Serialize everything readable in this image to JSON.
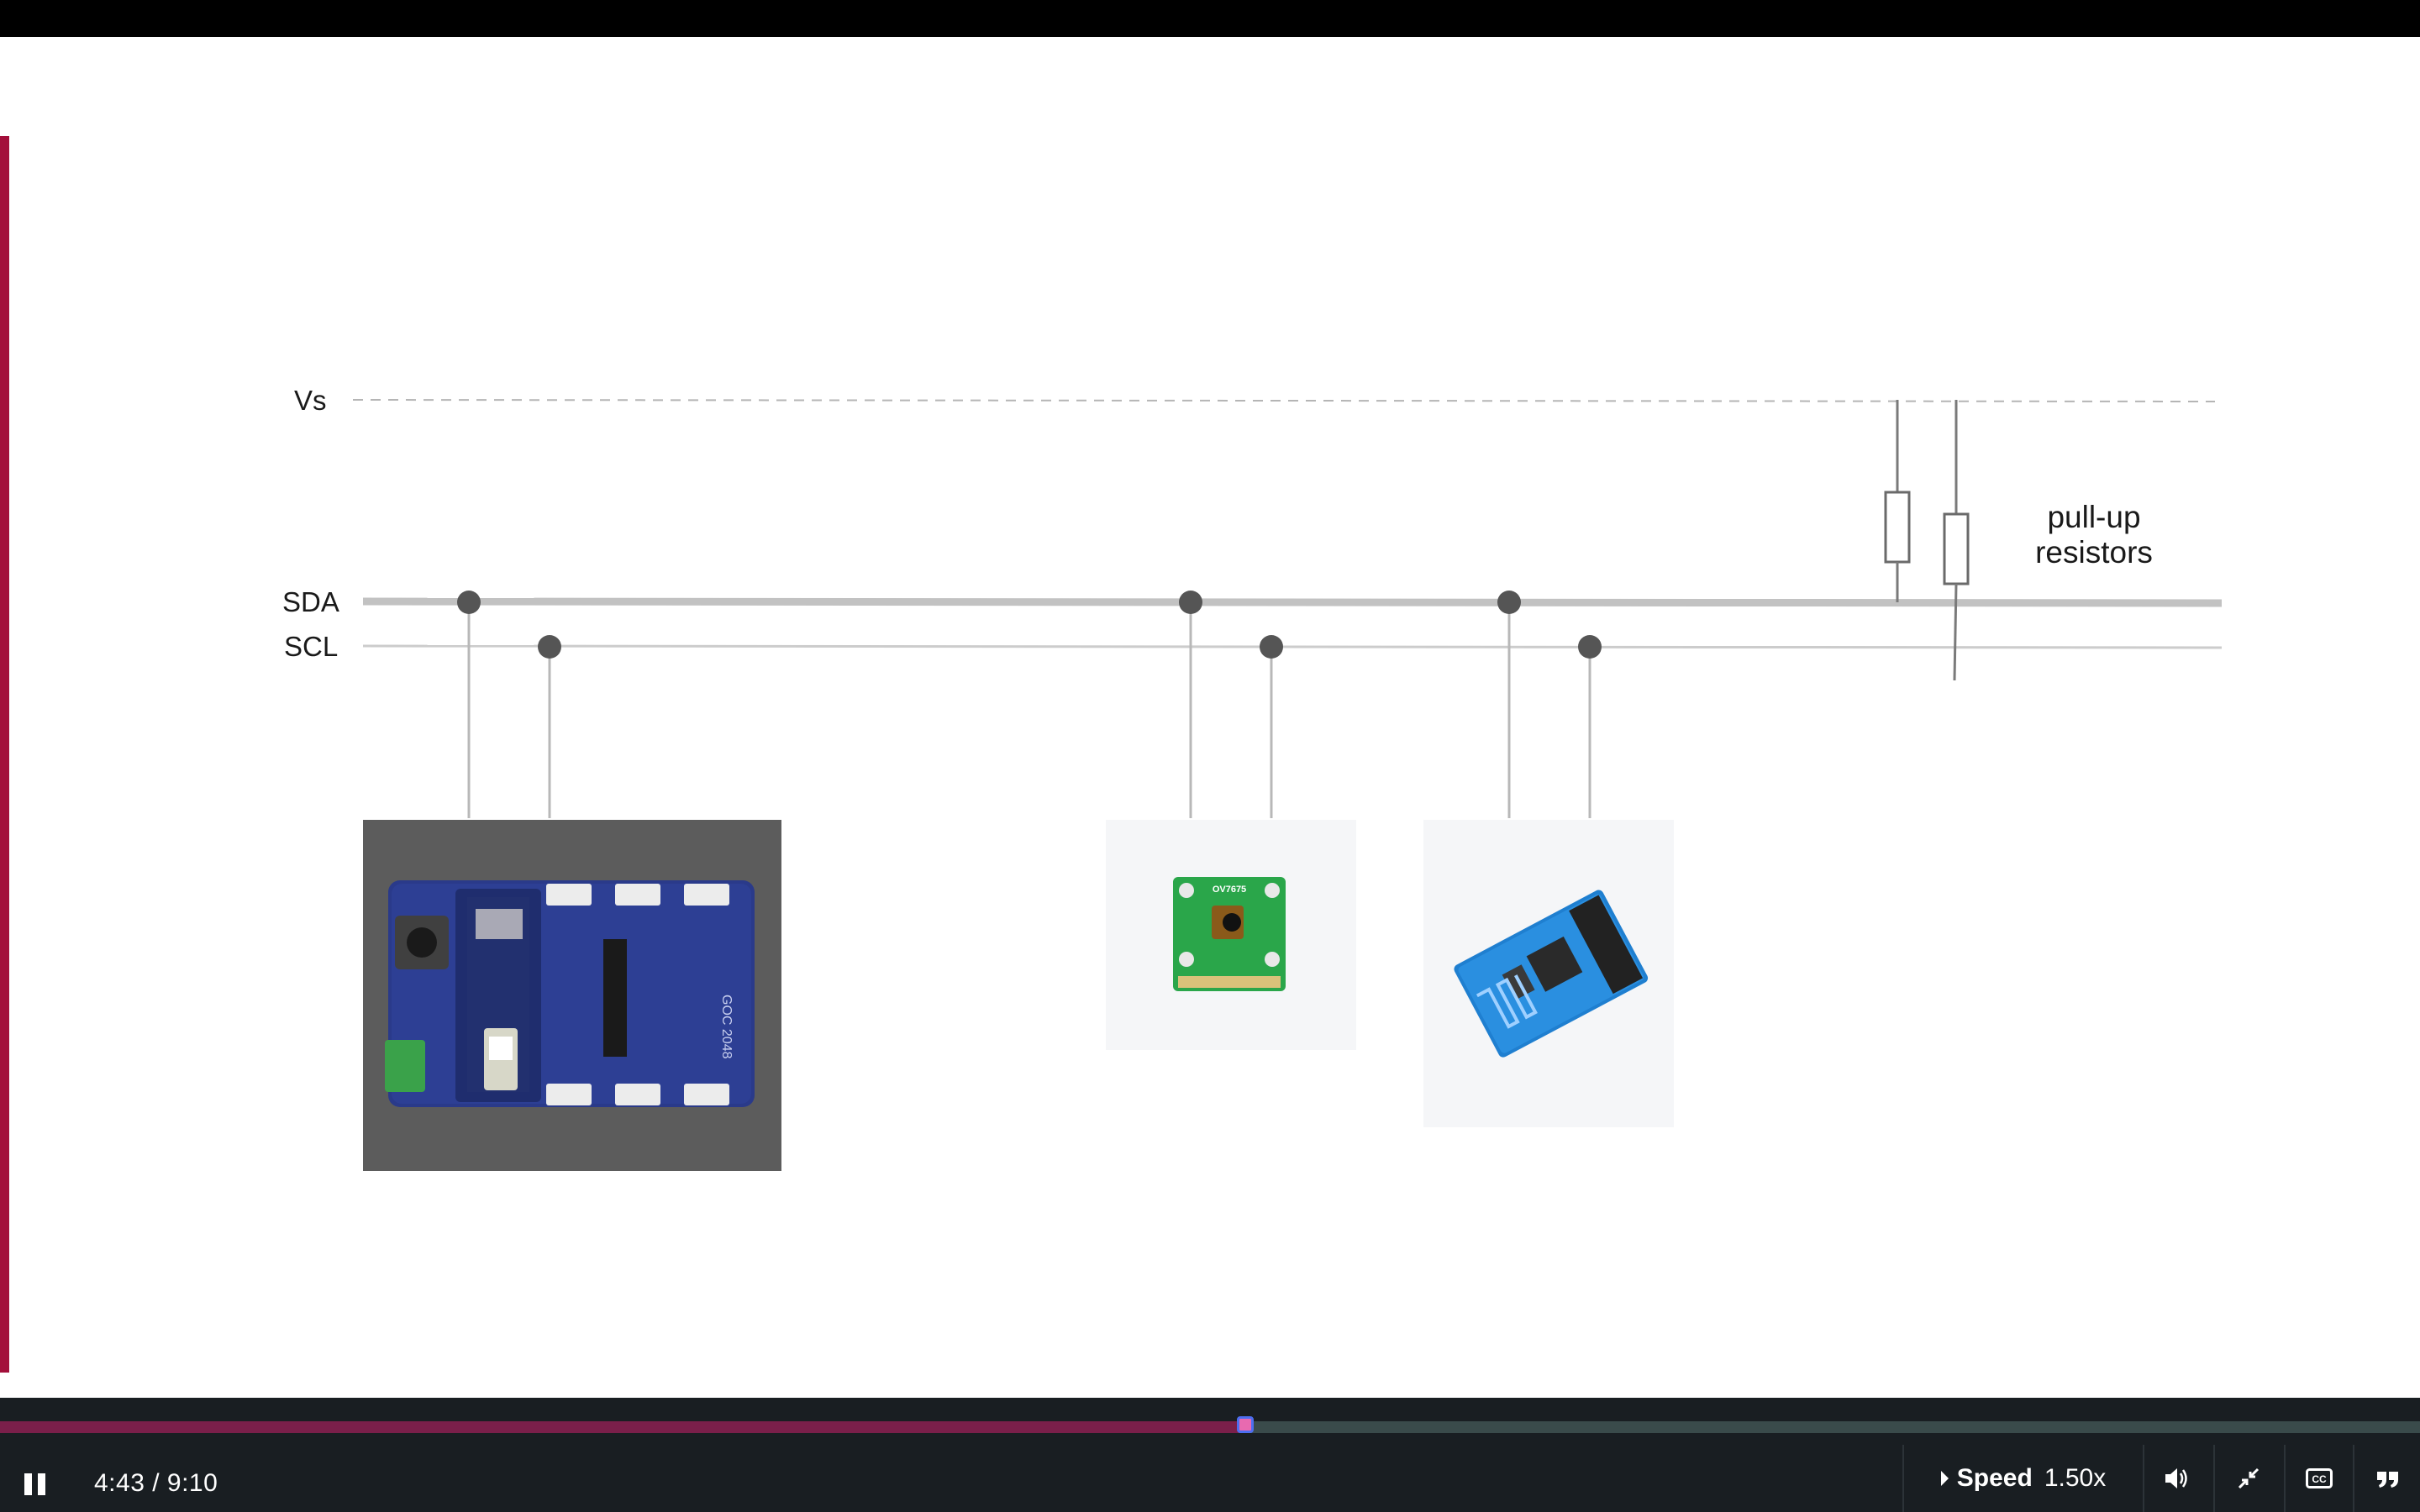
{
  "diagram": {
    "vs_label": "Vs",
    "sda_label": "SDA",
    "scl_label": "SCL",
    "pullup_label_line1": "pull-up",
    "pullup_label_line2": "resistors",
    "camera_chip_text": "OV7675",
    "board_text": "GOC 2048",
    "colors": {
      "accent": "#a30f3a",
      "bus_sda": "#c2c2c2",
      "bus_scl": "#cccccc",
      "node": "#555555"
    }
  },
  "player": {
    "time_display": "4:43 / 9:10",
    "progress": {
      "current_seconds": 283,
      "total_seconds": 550
    },
    "speed_label": "Speed",
    "speed_value": "1.50x",
    "icons": {
      "play_pause": "pause-icon",
      "volume": "volume-icon",
      "fullscreen": "exit-fullscreen-icon",
      "captions": "closed-captions-icon",
      "transcript": "quote-icon"
    }
  }
}
